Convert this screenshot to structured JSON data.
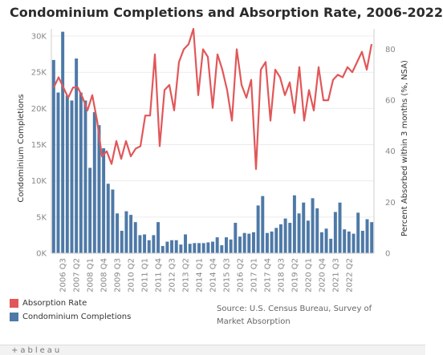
{
  "chart_data": {
    "type": "bar+line",
    "title": "Condominium Completions and Absorption Rate, 2006-2022",
    "ylabel_left": "Condominium Completions",
    "ylabel_right": "Percent Absorbed within 3 months (%, NSA)",
    "ylim_left": [
      0,
      31000
    ],
    "ylim_right": [
      0,
      88
    ],
    "yticks_left": [
      "0K",
      "5K",
      "10K",
      "15K",
      "20K",
      "25K",
      "30K"
    ],
    "yticks_right": [
      "0",
      "20",
      "40",
      "60",
      "80"
    ],
    "x_tick_labels": [
      "2006 Q3",
      "2007 Q2",
      "2008 Q1",
      "2008 Q4",
      "2009 Q3",
      "2010 Q2",
      "2011 Q1",
      "2011 Q4",
      "2012 Q3",
      "2013 Q2",
      "2014 Q1",
      "2014 Q4",
      "2015 Q3",
      "2016 Q2",
      "2017 Q1",
      "2017 Q4",
      "2018 Q3",
      "2019 Q2",
      "2020 Q1",
      "2020 Q4",
      "2021 Q3",
      "2022 Q2"
    ],
    "x_tick_start_index": 2,
    "x_tick_step": 3,
    "series": [
      {
        "name": "Condominium Completions",
        "type": "bar",
        "color": "#4e79a7",
        "values": [
          26700,
          22200,
          30600,
          21800,
          21100,
          26900,
          22200,
          21100,
          11800,
          19500,
          17700,
          14500,
          9600,
          8800,
          5500,
          3100,
          5800,
          5300,
          4300,
          2500,
          2600,
          1800,
          2500,
          4300,
          1000,
          1600,
          1800,
          1800,
          1200,
          2600,
          1300,
          1400,
          1400,
          1400,
          1500,
          1600,
          2200,
          1100,
          2200,
          1900,
          4200,
          2300,
          2800,
          2700,
          2900,
          6600,
          7900,
          2800,
          3000,
          3500,
          4000,
          4800,
          4200,
          8000,
          5500,
          7000,
          4500,
          7600,
          6200,
          2900,
          3400,
          2000,
          5700,
          7000,
          3300,
          3000,
          2700,
          5600,
          3100,
          4700,
          4300
        ]
      },
      {
        "name": "Absorption Rate",
        "type": "line",
        "color": "#e15759",
        "values": [
          65,
          69,
          65,
          61,
          65,
          65,
          61,
          56,
          62,
          52,
          38,
          40,
          35,
          44,
          37,
          44,
          38,
          41,
          42,
          54,
          54,
          78,
          42,
          64,
          66,
          56,
          75,
          80,
          82,
          88,
          62,
          80,
          77,
          57,
          78,
          72,
          64,
          52,
          80,
          66,
          61,
          68,
          33,
          72,
          75,
          52,
          72,
          69,
          62,
          67,
          55,
          73,
          52,
          64,
          56,
          73,
          60,
          60,
          68,
          70,
          69,
          73,
          71,
          75,
          79,
          72,
          82
        ]
      }
    ],
    "grid": true,
    "legend_position": "bottom-left"
  },
  "legend": {
    "absorption_label": "Absorption Rate",
    "completions_label": "Condominium Completions"
  },
  "source": "Source: U.S. Census Bureau, Survey of Market Absorption",
  "footer_logo": "+ableau"
}
